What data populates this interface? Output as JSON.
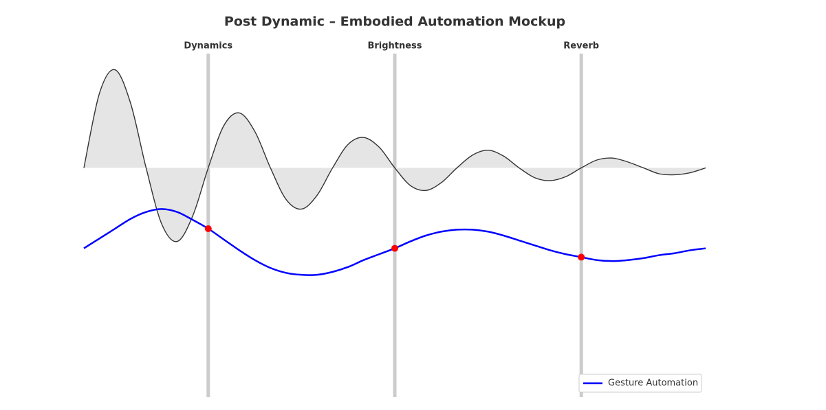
{
  "chart_data": {
    "type": "line",
    "title": "Post Dynamic – Embodied Automation Mockup",
    "x": [
      0,
      0.25,
      0.5,
      0.75,
      1,
      1.25,
      1.5,
      1.75,
      2,
      2.25,
      2.5,
      2.75,
      3,
      3.25,
      3.5,
      3.75,
      4,
      4.25,
      4.5,
      4.75,
      5,
      5.25,
      5.5,
      5.75,
      6,
      6.25,
      6.5,
      6.75,
      7,
      7.25,
      7.5,
      7.75,
      8,
      8.25,
      8.5,
      8.75,
      9,
      9.25,
      9.5,
      9.75,
      10
    ],
    "xlim": [
      0,
      10
    ],
    "ylim": [
      -2.3,
      1.2
    ],
    "series": [
      {
        "color": "#333333",
        "fill": "#e5e5e5",
        "values": [
          0,
          0.76,
          1.0,
          0.66,
          0,
          -0.57,
          -0.75,
          -0.49,
          0,
          0.43,
          0.56,
          0.37,
          0,
          -0.32,
          -0.42,
          -0.28,
          0,
          0.24,
          0.31,
          0.21,
          0,
          -0.18,
          -0.23,
          -0.15,
          0,
          0.13,
          0.18,
          0.12,
          0,
          -0.1,
          -0.13,
          -0.09,
          0,
          0.08,
          0.1,
          0.06,
          0,
          -0.06,
          -0.07,
          -0.05,
          0
        ]
      },
      {
        "name": "Gesture Automation",
        "color": "#0000ff",
        "values": [
          -0.82,
          -0.72,
          -0.62,
          -0.52,
          -0.45,
          -0.42,
          -0.45,
          -0.53,
          -0.62,
          -0.73,
          -0.84,
          -0.94,
          -1.02,
          -1.07,
          -1.09,
          -1.09,
          -1.06,
          -1.01,
          -0.94,
          -0.88,
          -0.82,
          -0.75,
          -0.69,
          -0.65,
          -0.63,
          -0.63,
          -0.65,
          -0.69,
          -0.74,
          -0.79,
          -0.84,
          -0.88,
          -0.91,
          -0.94,
          -0.95,
          -0.94,
          -0.92,
          -0.89,
          -0.87,
          -0.84,
          -0.82
        ]
      }
    ],
    "markers": {
      "labels": [
        "Dynamics",
        "Brightness",
        "Reverb"
      ],
      "x": [
        2,
        5,
        8
      ],
      "values": [
        -0.62,
        -0.82,
        -0.91
      ],
      "color": "#ff0000",
      "line_color": "#cccccc"
    },
    "legend": "lower right"
  }
}
